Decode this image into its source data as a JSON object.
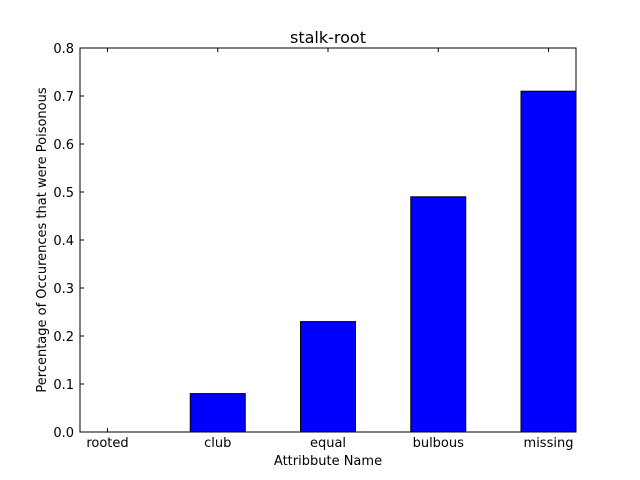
{
  "chart_data": {
    "type": "bar",
    "title": "stalk-root",
    "xlabel": "Attribbute Name",
    "ylabel": "Percentage of Occurences that were Poisonous",
    "categories": [
      "rooted",
      "club",
      "equal",
      "bulbous",
      "missing"
    ],
    "values": [
      0.0,
      0.08,
      0.23,
      0.49,
      0.71
    ],
    "ylim": [
      0,
      0.8
    ],
    "yticks": [
      "0.0",
      "0.1",
      "0.2",
      "0.3",
      "0.4",
      "0.5",
      "0.6",
      "0.7",
      "0.8"
    ],
    "grid": false,
    "legend": "none",
    "bar_color": "#0000ff",
    "edge_color": "#000000"
  }
}
